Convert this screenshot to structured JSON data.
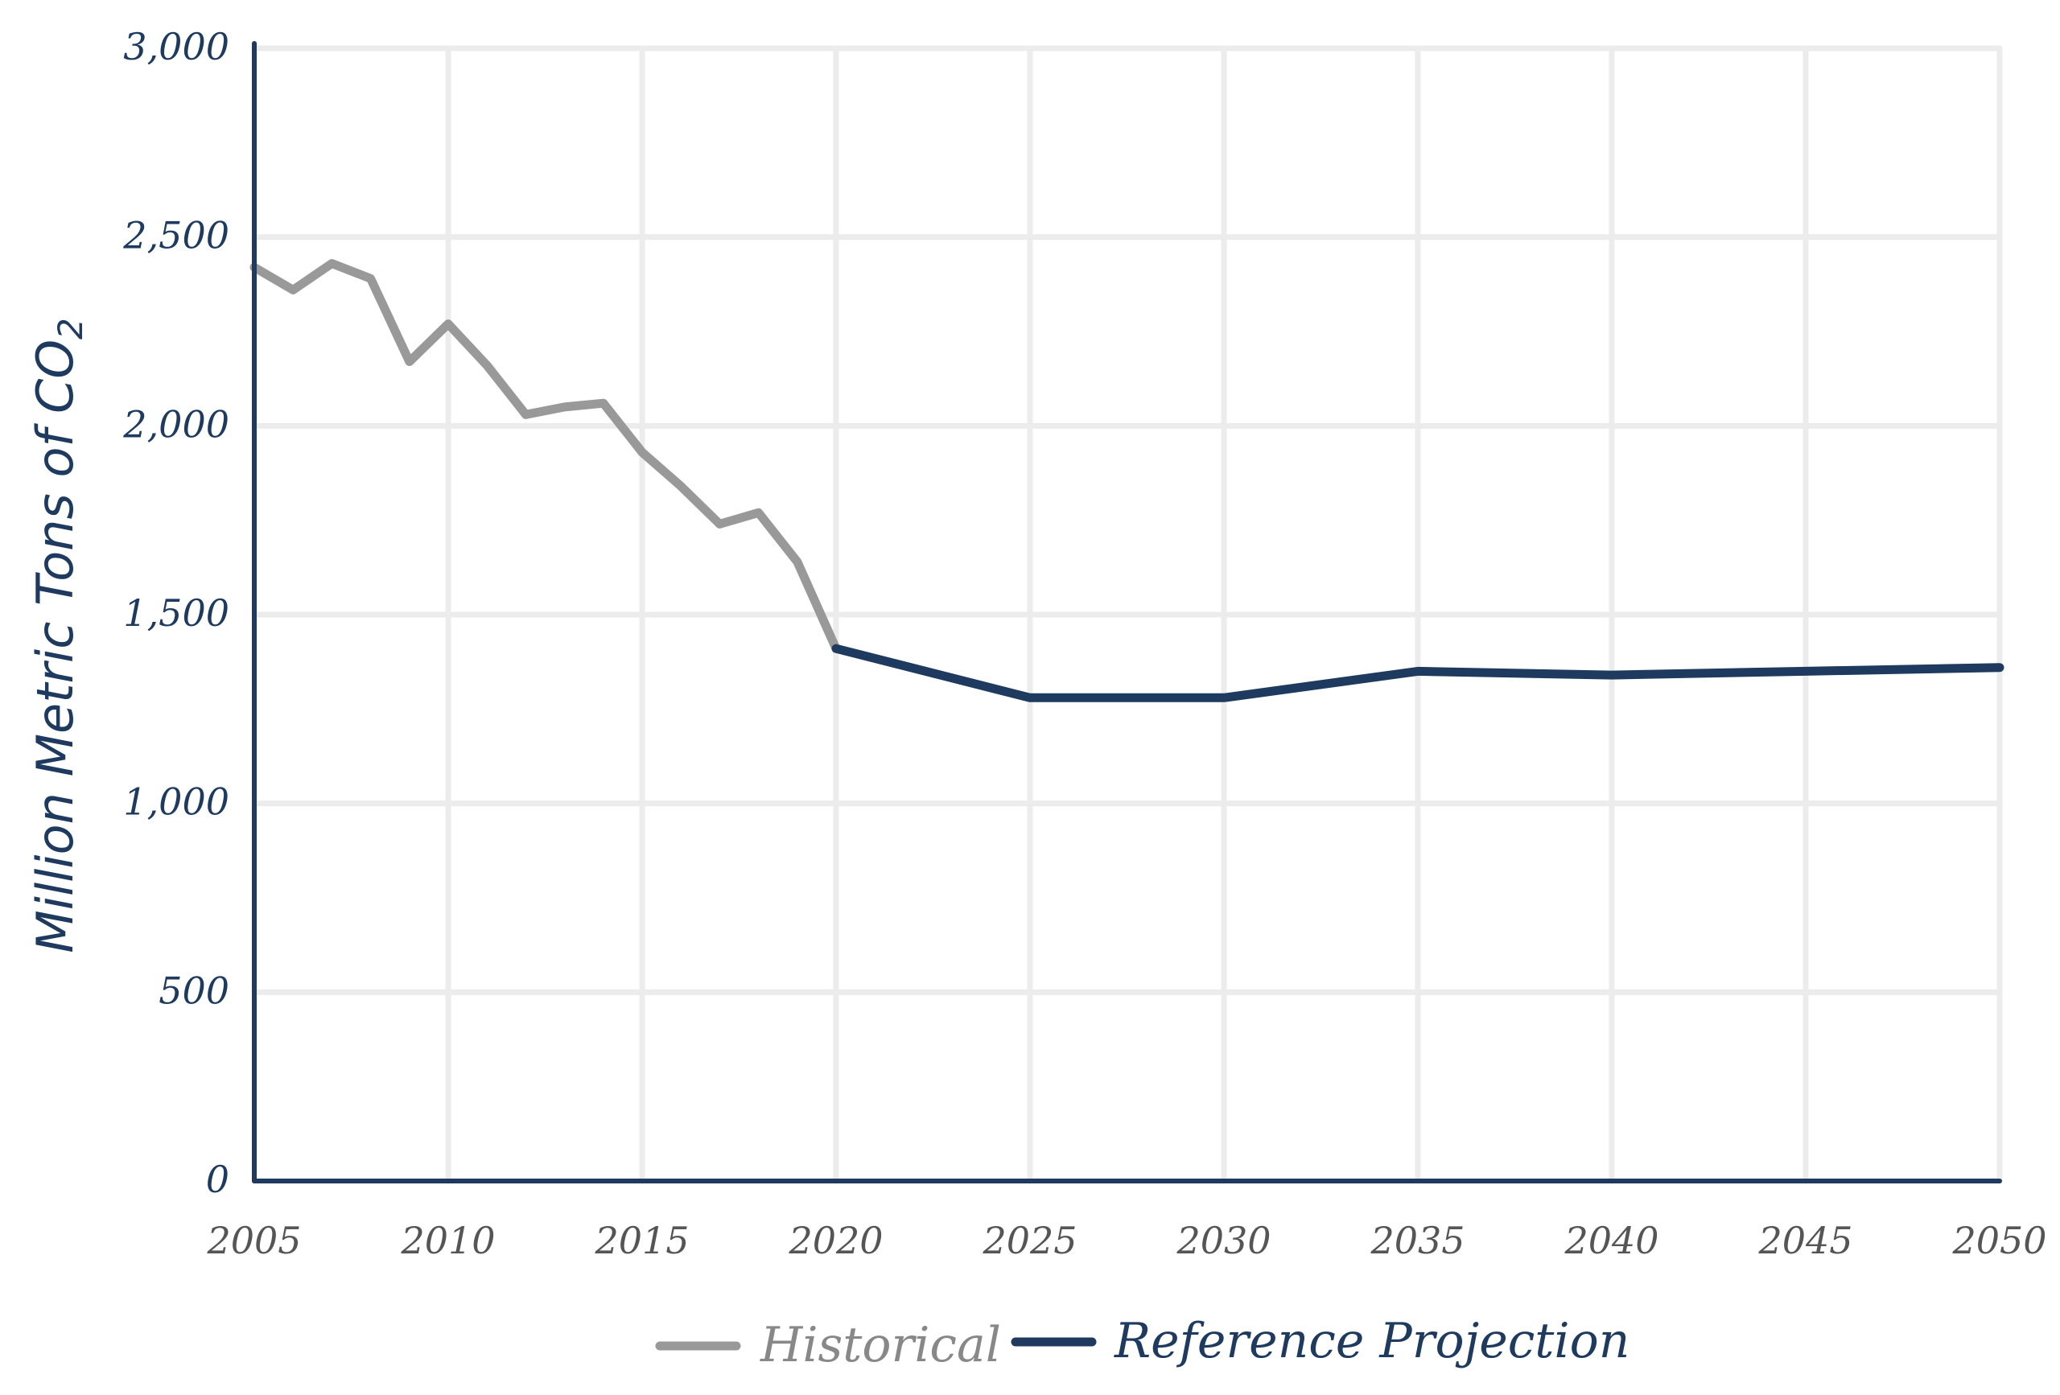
{
  "chart_data": {
    "type": "line",
    "title": "",
    "xlabel": "",
    "ylabel": "Million Metric Tons of CO",
    "ylabel_subscript": "2",
    "xlim": [
      2005,
      2050
    ],
    "ylim": [
      0,
      3000
    ],
    "x_ticks": [
      "2005",
      "2010",
      "2015",
      "2020",
      "2025",
      "2030",
      "2035",
      "2040",
      "2045",
      "2050"
    ],
    "x_tick_values": [
      2005,
      2010,
      2015,
      2020,
      2025,
      2030,
      2035,
      2040,
      2045,
      2050
    ],
    "y_ticks": [
      "0",
      "500",
      "1,000",
      "1,500",
      "2,000",
      "2,500",
      "3,000"
    ],
    "y_tick_values": [
      0,
      500,
      1000,
      1500,
      2000,
      2500,
      3000
    ],
    "grid": true,
    "legend_position": "bottom-center",
    "series": [
      {
        "name": "Historical",
        "color": "#999999",
        "x": [
          2005,
          2006,
          2007,
          2008,
          2009,
          2010,
          2011,
          2012,
          2013,
          2014,
          2015,
          2016,
          2017,
          2018,
          2019,
          2020
        ],
        "values": [
          2420,
          2360,
          2430,
          2390,
          2170,
          2270,
          2160,
          2030,
          2050,
          2060,
          1930,
          1840,
          1740,
          1770,
          1640,
          1410
        ]
      },
      {
        "name": "Reference Projection",
        "color": "#1e3a5f",
        "x": [
          2020,
          2025,
          2030,
          2035,
          2040,
          2045,
          2050
        ],
        "values": [
          1410,
          1280,
          1280,
          1350,
          1340,
          1350,
          1360
        ]
      }
    ]
  }
}
